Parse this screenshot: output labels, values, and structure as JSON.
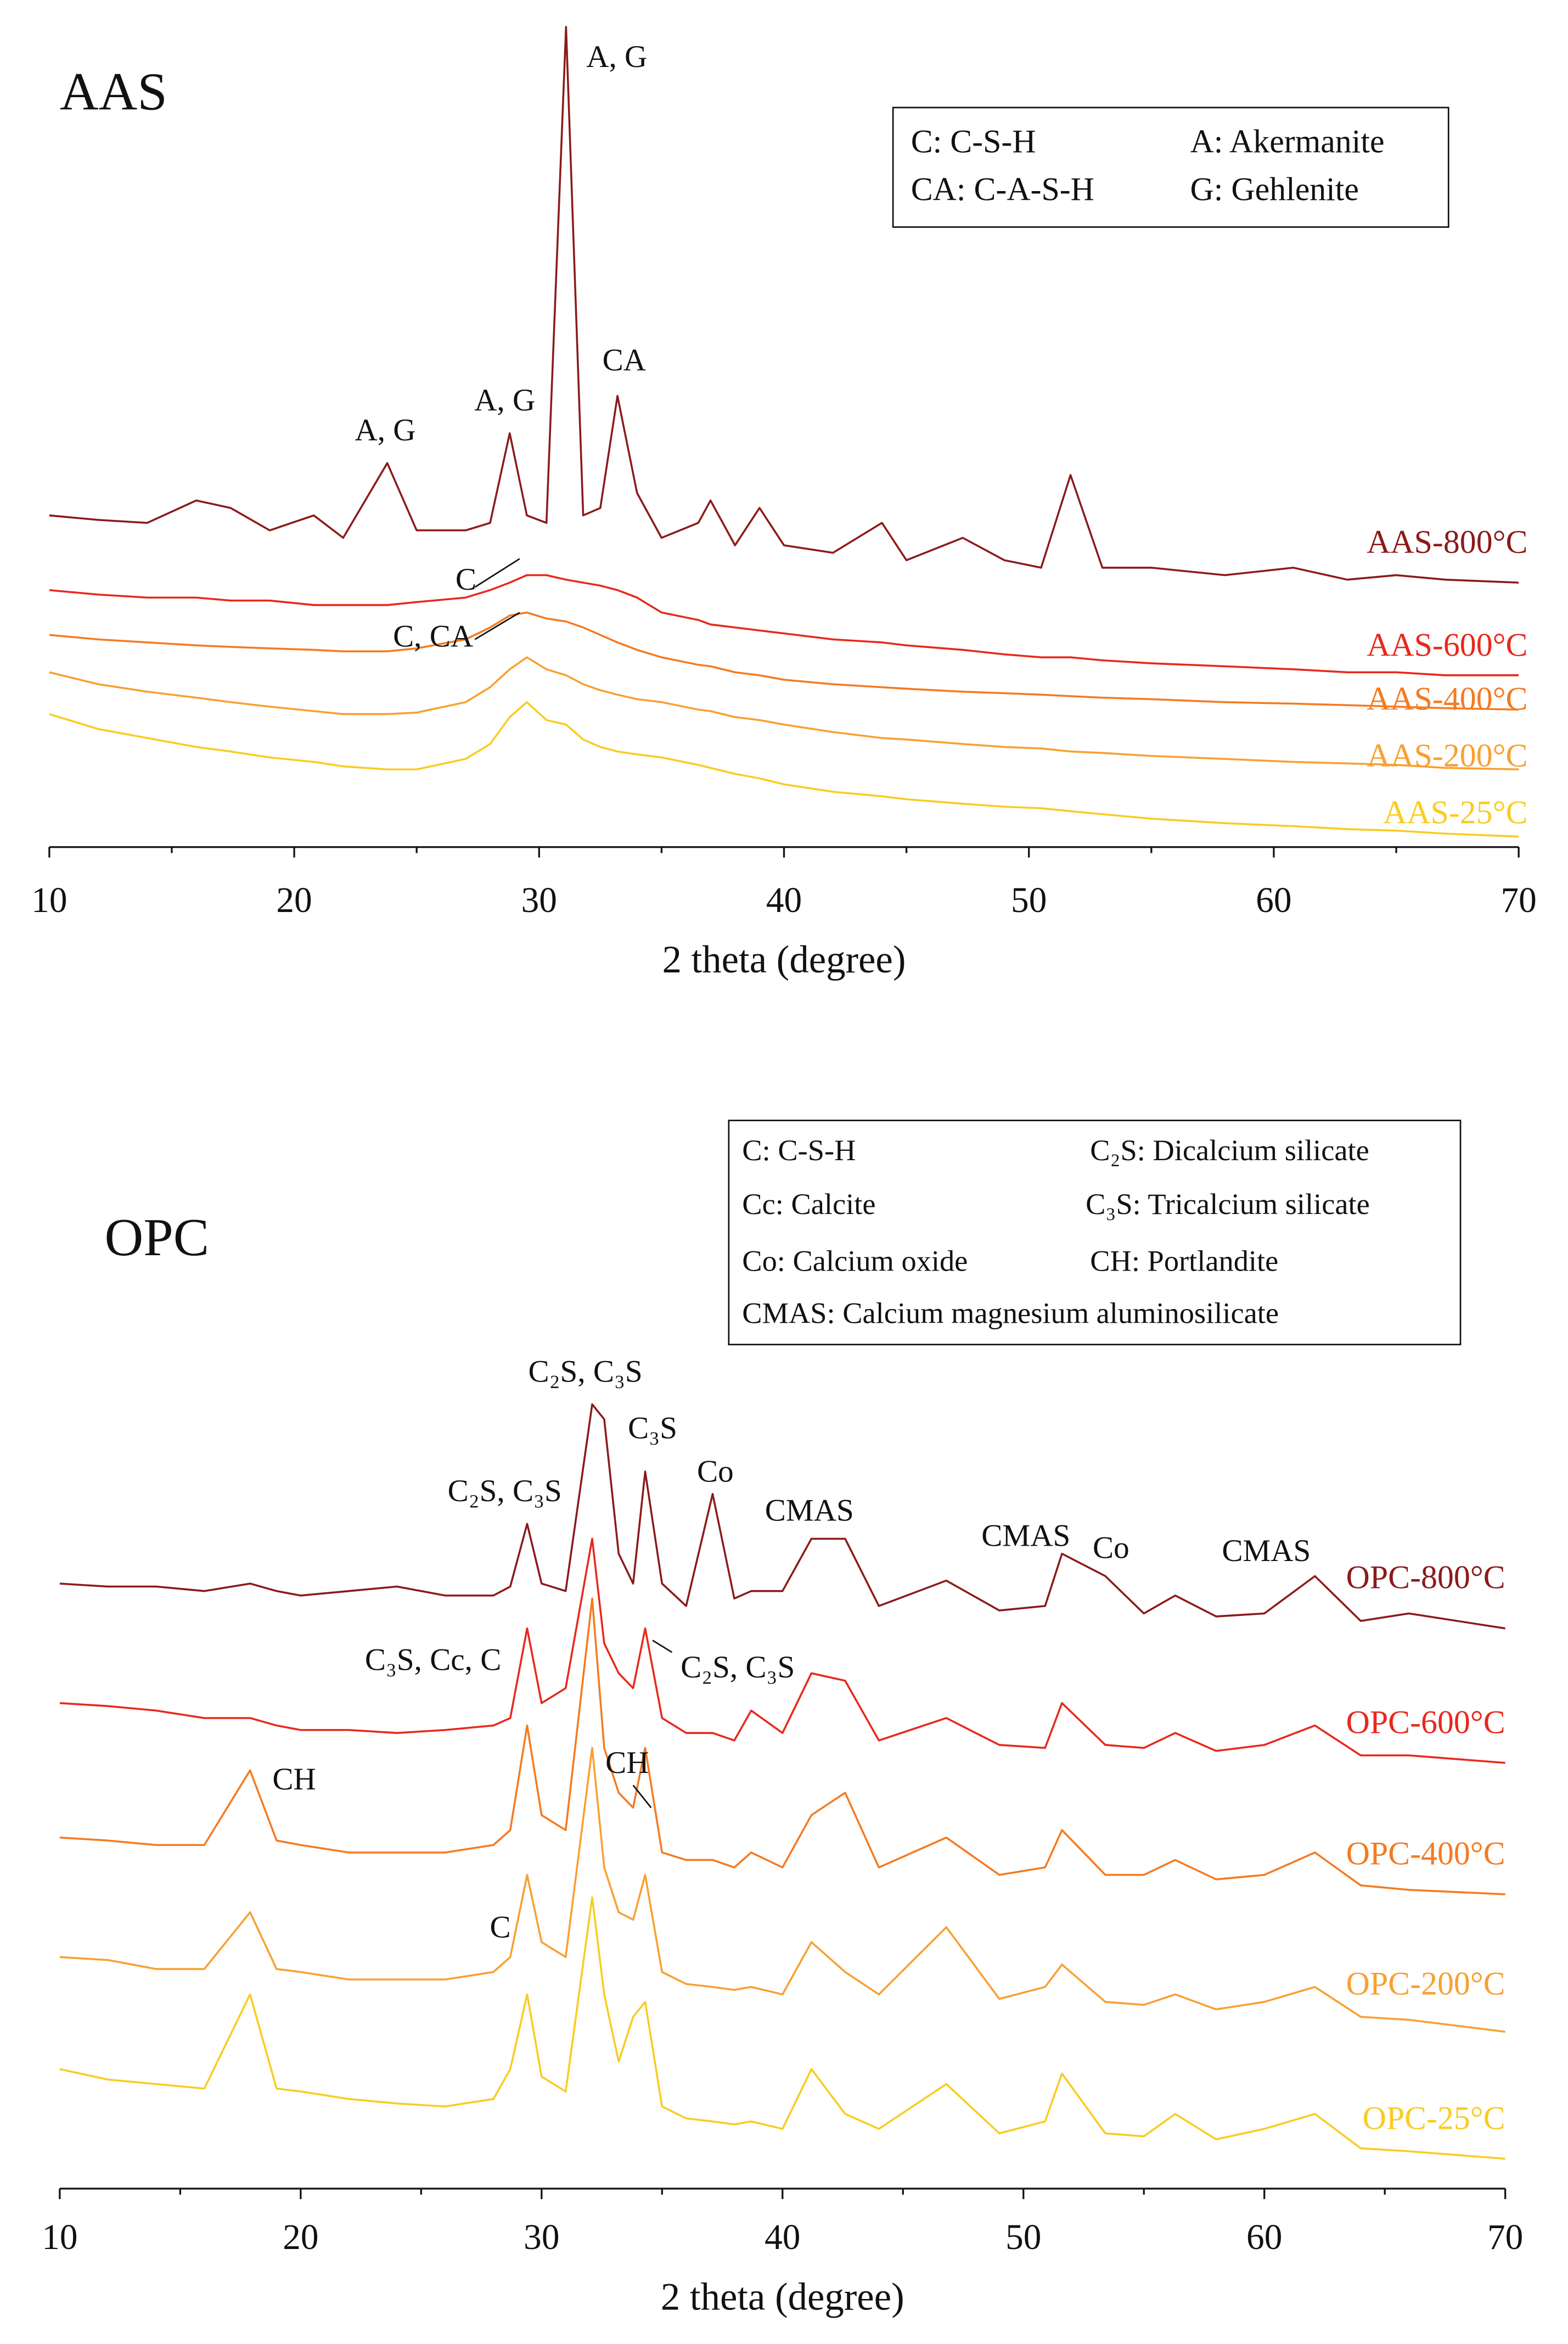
{
  "chart_data": [
    {
      "type": "line",
      "title": "AAS",
      "x_label": "2 theta (degree)",
      "x": [
        10,
        12,
        14,
        16,
        17.4,
        19,
        20.8,
        22,
        23.8,
        25,
        27,
        28,
        28.8,
        29.5,
        30.3,
        31.1,
        31.8,
        32.5,
        33.2,
        34,
        35,
        36.5,
        37,
        38,
        39,
        40,
        42,
        44,
        45,
        47.3,
        49,
        50.5,
        51.7,
        53,
        55,
        58,
        60.8,
        63,
        65,
        67,
        70
      ],
      "xlim": [
        10,
        70
      ],
      "xticks": [
        10,
        20,
        30,
        40,
        50,
        60,
        70
      ],
      "ylim": [
        0,
        552
      ],
      "series": [
        {
          "name": "AAS-800°C",
          "color": "#8b1a1a",
          "values": [
            222,
            219,
            217,
            232,
            227,
            212,
            222,
            207,
            257,
            212,
            212,
            217,
            277,
            222,
            217,
            549,
            222,
            227,
            302,
            237,
            207,
            217,
            232,
            202,
            227,
            202,
            197,
            217,
            192,
            207,
            192,
            187,
            249,
            187,
            187,
            182,
            187,
            179,
            182,
            179,
            177
          ]
        },
        {
          "name": "AAS-600°C",
          "color": "#e8281c",
          "values": [
            172,
            169,
            167,
            167,
            165,
            165,
            162,
            162,
            162,
            164,
            167,
            172,
            177,
            182,
            182,
            179,
            177,
            175,
            172,
            167,
            157,
            152,
            149,
            147,
            145,
            143,
            139,
            137,
            135,
            132,
            129,
            127,
            127,
            125,
            123,
            121,
            119,
            117,
            117,
            115,
            115
          ]
        },
        {
          "name": "AAS-400°C",
          "color": "#f57a20",
          "values": [
            142,
            139,
            137,
            135,
            134,
            133,
            132,
            131,
            131,
            133,
            139,
            147,
            155,
            157,
            153,
            151,
            147,
            142,
            137,
            132,
            127,
            122,
            121,
            117,
            115,
            112,
            109,
            107,
            106,
            104,
            103,
            102,
            101,
            100,
            99,
            97,
            96,
            95,
            94,
            93,
            92
          ]
        },
        {
          "name": "AAS-200°C",
          "color": "#f8a030",
          "values": [
            117,
            109,
            104,
            100,
            97,
            94,
            91,
            89,
            89,
            90,
            97,
            107,
            119,
            127,
            119,
            115,
            109,
            105,
            102,
            99,
            97,
            92,
            91,
            87,
            85,
            82,
            77,
            73,
            72,
            69,
            67,
            66,
            64,
            63,
            61,
            59,
            57,
            56,
            55,
            53,
            52
          ]
        },
        {
          "name": "AAS-25°C",
          "color": "#f9cc20",
          "values": [
            89,
            79,
            73,
            67,
            64,
            60,
            57,
            54,
            52,
            52,
            59,
            69,
            87,
            97,
            85,
            82,
            72,
            67,
            64,
            62,
            60,
            55,
            53,
            49,
            46,
            42,
            37,
            34,
            32,
            29,
            27,
            26,
            24,
            22,
            19,
            16,
            14,
            12,
            11,
            9,
            7
          ]
        }
      ],
      "legend_box": [
        "C: C-S-H",
        "A: Akermanite",
        "CA: C-A-S-H",
        "G: Gehlenite"
      ],
      "annotations": [
        "A, G",
        "A, G",
        "A, G",
        "CA",
        "C",
        "C, CA"
      ]
    },
    {
      "type": "line",
      "title": "OPC",
      "x_label": "2 theta (degree)",
      "x": [
        10,
        12,
        14,
        16,
        17.9,
        19,
        20,
        22,
        24,
        26,
        28,
        28.7,
        29.4,
        30,
        31,
        32.1,
        32.6,
        33.2,
        33.8,
        34.3,
        35,
        36,
        37.1,
        38,
        38.7,
        40,
        41.2,
        42.6,
        44,
        46.8,
        49,
        50.9,
        51.6,
        53.4,
        55,
        56.3,
        58,
        60,
        62.1,
        64,
        66,
        70
      ],
      "xlim": [
        10,
        70
      ],
      "xticks": [
        10,
        20,
        30,
        40,
        50,
        60,
        70
      ],
      "ylim": [
        0,
        525
      ],
      "series": [
        {
          "name": "OPC-800°C",
          "color": "#8b1a1a",
          "values": [
            405,
            403,
            403,
            400,
            405,
            400,
            397,
            400,
            403,
            397,
            397,
            403,
            445,
            405,
            400,
            525,
            515,
            425,
            405,
            480,
            405,
            390,
            465,
            395,
            400,
            400,
            435,
            435,
            390,
            407,
            387,
            390,
            425,
            410,
            385,
            397,
            383,
            385,
            410,
            380,
            385,
            375
          ]
        },
        {
          "name": "OPC-600°C",
          "color": "#e8281c",
          "values": [
            325,
            323,
            320,
            315,
            315,
            310,
            307,
            307,
            305,
            307,
            310,
            315,
            375,
            325,
            335,
            435,
            365,
            345,
            335,
            375,
            315,
            305,
            305,
            300,
            320,
            305,
            345,
            340,
            300,
            315,
            297,
            295,
            325,
            297,
            295,
            305,
            293,
            297,
            310,
            290,
            290,
            285
          ]
        },
        {
          "name": "OPC-400°C",
          "color": "#f57a20",
          "values": [
            235,
            233,
            230,
            230,
            280,
            233,
            230,
            225,
            225,
            225,
            230,
            240,
            310,
            250,
            240,
            395,
            295,
            265,
            255,
            295,
            225,
            220,
            220,
            215,
            225,
            215,
            250,
            265,
            215,
            235,
            210,
            215,
            240,
            210,
            210,
            220,
            207,
            210,
            225,
            203,
            200,
            197
          ]
        },
        {
          "name": "OPC-200°C",
          "color": "#f8a030",
          "values": [
            155,
            153,
            147,
            147,
            185,
            147,
            145,
            140,
            140,
            140,
            145,
            155,
            210,
            165,
            155,
            295,
            215,
            185,
            180,
            210,
            145,
            137,
            135,
            133,
            135,
            130,
            165,
            145,
            130,
            175,
            127,
            135,
            150,
            125,
            123,
            130,
            120,
            125,
            135,
            115,
            113,
            105
          ]
        },
        {
          "name": "OPC-25°C",
          "color": "#f9cc20",
          "values": [
            80,
            73,
            70,
            67,
            130,
            67,
            65,
            60,
            57,
            55,
            60,
            80,
            130,
            75,
            65,
            195,
            130,
            85,
            115,
            125,
            55,
            47,
            45,
            43,
            45,
            40,
            80,
            50,
            40,
            70,
            37,
            45,
            77,
            37,
            35,
            50,
            33,
            40,
            50,
            27,
            25,
            20
          ]
        }
      ],
      "legend_box": [
        "C: C-S-H",
        "C₂S: Dicalcium silicate",
        "Cc: Calcite",
        "C₃S: Tricalcium silicate",
        "Co: Calcium oxide",
        "CH: Portlandite",
        "CMAS: Calcium magnesium aluminosilicate"
      ],
      "annotations": [
        "C₂S, C₃S",
        "C₂S, C₃S",
        "C₃S",
        "Co",
        "CMAS",
        "CMAS",
        "Co",
        "CMAS",
        "C₃S, Cc, C",
        "C₂S, C₃S",
        "CH",
        "CH",
        "C"
      ]
    }
  ]
}
